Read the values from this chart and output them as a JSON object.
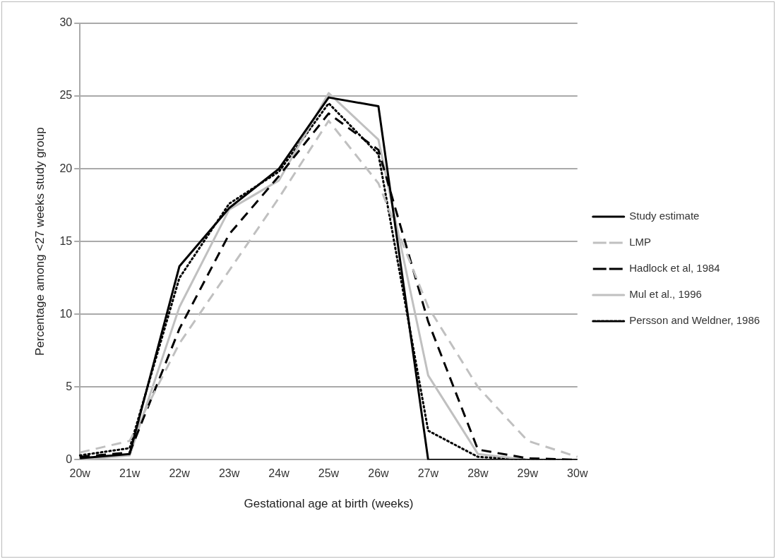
{
  "chart_data": {
    "type": "line",
    "xlabel": "Gestational age at birth (weeks)",
    "ylabel": "Percentage among <27 weeks study group",
    "categories": [
      "20w",
      "21w",
      "22w",
      "23w",
      "24w",
      "25w",
      "26w",
      "27w",
      "28w",
      "29w",
      "30w"
    ],
    "series": [
      {
        "name": "Study estimate",
        "color": "#000000",
        "line_style": "solid",
        "values": [
          0.1,
          0.4,
          13.3,
          17.3,
          20,
          24.9,
          24.3,
          0,
          0,
          0,
          0
        ]
      },
      {
        "name": "LMP",
        "color": "#c0c0c0",
        "line_style": "dashed",
        "values": [
          0.5,
          1.3,
          8,
          13,
          18,
          23.3,
          19,
          10.5,
          5,
          1.3,
          0.2
        ]
      },
      {
        "name": "Hadlock et al, 1984",
        "color": "#000000",
        "line_style": "dashed",
        "values": [
          0.2,
          0.5,
          9,
          15.5,
          19.5,
          23.8,
          21.3,
          9.5,
          0.7,
          0.1,
          0
        ]
      },
      {
        "name": "Mul et al., 1996",
        "color": "#c0c0c0",
        "line_style": "solid",
        "values": [
          0,
          0.3,
          10.5,
          17.2,
          19.2,
          25.2,
          22,
          5.8,
          0.4,
          0,
          0
        ]
      },
      {
        "name": "Persson and Weldner, 1986",
        "color": "#000000",
        "line_style": "dotted",
        "values": [
          0.3,
          0.8,
          12.5,
          17.6,
          19.8,
          24.5,
          21,
          2,
          0.2,
          0,
          0
        ]
      }
    ],
    "ylim": [
      0,
      30
    ],
    "yticks": [
      0,
      5,
      10,
      15,
      20,
      25,
      30
    ],
    "grid": "y",
    "legend": "right",
    "marker": "none"
  }
}
